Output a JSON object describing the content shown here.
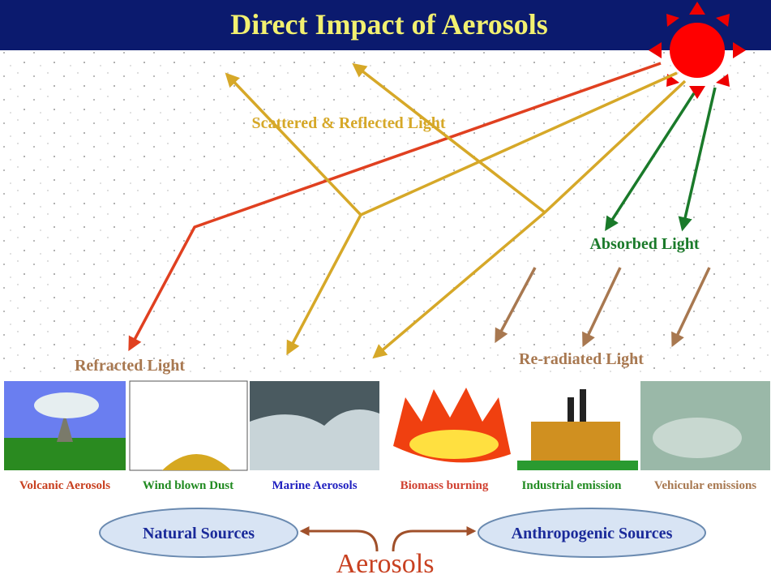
{
  "title": "Direct Impact of Aerosols",
  "light": {
    "scattered": "Scattered & Reflected Light",
    "absorbed": "Absorbed Light",
    "refracted": "Refracted Light",
    "reradiated": "Re-radiated Light"
  },
  "sources": [
    "Volcanic Aerosols",
    "Wind blown Dust",
    "Marine Aerosols",
    "Biomass burning",
    "Industrial emission",
    "Vehicular emissions"
  ],
  "groups": {
    "natural": "Natural Sources",
    "anthropogenic": "Anthropogenic Sources"
  },
  "center": "Aerosols"
}
